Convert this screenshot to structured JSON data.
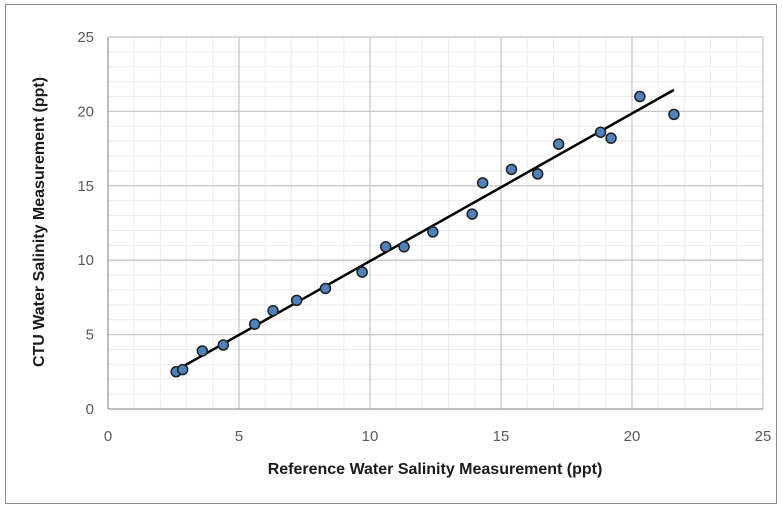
{
  "chart_data": {
    "type": "scatter",
    "xlabel": "Reference Water Salinity Measurement (ppt)",
    "ylabel": "CTU Water Salinity Measurement (ppt)",
    "xlim": [
      0,
      25
    ],
    "ylim": [
      0,
      25
    ],
    "xticks": [
      "0",
      "5",
      "10",
      "15",
      "20",
      "25"
    ],
    "yticks": [
      "0",
      "5",
      "10",
      "15",
      "20",
      "25"
    ],
    "grid": true,
    "minor_grid": true,
    "legend": "none",
    "series": [
      {
        "points": [
          [
            2.6,
            2.5
          ],
          [
            2.85,
            2.65
          ],
          [
            3.6,
            3.9
          ],
          [
            4.4,
            4.3
          ],
          [
            5.6,
            5.7
          ],
          [
            6.3,
            6.6
          ],
          [
            7.2,
            7.3
          ],
          [
            8.3,
            8.1
          ],
          [
            9.7,
            9.2
          ],
          [
            10.6,
            10.9
          ],
          [
            11.3,
            10.9
          ],
          [
            12.4,
            11.9
          ],
          [
            13.9,
            13.1
          ],
          [
            14.3,
            15.2
          ],
          [
            15.4,
            16.1
          ],
          [
            16.4,
            15.8
          ],
          [
            17.2,
            17.8
          ],
          [
            18.8,
            18.6
          ],
          [
            19.2,
            18.2
          ],
          [
            20.3,
            21.0
          ],
          [
            21.6,
            19.8
          ]
        ],
        "marker_color": "#4f81bd",
        "marker_edge": "#1f1f1f"
      }
    ],
    "trendline": {
      "type": "linear",
      "x_range": [
        2.6,
        21.6
      ],
      "slope": 0.992,
      "intercept": 0.02,
      "color": "#000000"
    }
  }
}
